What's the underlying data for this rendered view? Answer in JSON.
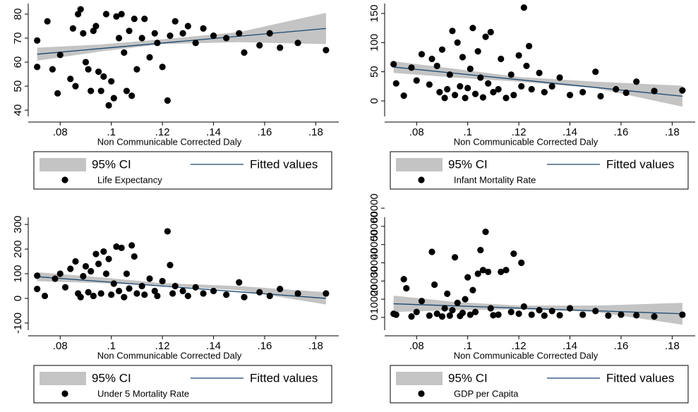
{
  "chart_data": [
    {
      "type": "scatter",
      "xlabel": "Non Communicable Corrected Daly",
      "xlim": [
        0.0675,
        0.189
      ],
      "xticks": [
        {
          "value": 0.08,
          "label": ".08"
        },
        {
          "value": 0.1,
          "label": ".1"
        },
        {
          "value": 0.12,
          "label": ".12"
        },
        {
          "value": 0.14,
          "label": ".14"
        },
        {
          "value": 0.16,
          "label": ".16"
        },
        {
          "value": 0.18,
          "label": ".18"
        }
      ],
      "ylim": [
        37.4,
        84.4
      ],
      "yticks": [
        40,
        50,
        60,
        70,
        80
      ],
      "series": [
        {
          "name": "95% CI",
          "color": "#c4c4c4",
          "x": [
            0.071,
            0.095,
            0.12,
            0.15,
            0.184
          ],
          "lower": [
            60.6,
            64.3,
            67.5,
            68.3,
            67.5
          ],
          "upper": [
            66,
            67.3,
            69.5,
            72.5,
            80.5
          ]
        },
        {
          "name": "Fitted values",
          "color": "#1a476f",
          "x": [
            0.071,
            0.184
          ],
          "values": [
            63.3,
            74
          ]
        },
        {
          "name": "Life Expectancy",
          "color": "#000000",
          "x": [
            0.071,
            0.071,
            0.075,
            0.077,
            0.079,
            0.08,
            0.084,
            0.085,
            0.086,
            0.087,
            0.088,
            0.089,
            0.09,
            0.091,
            0.092,
            0.093,
            0.094,
            0.095,
            0.096,
            0.097,
            0.098,
            0.099,
            0.1,
            0.101,
            0.102,
            0.103,
            0.104,
            0.105,
            0.106,
            0.107,
            0.108,
            0.109,
            0.11,
            0.112,
            0.113,
            0.115,
            0.117,
            0.118,
            0.12,
            0.122,
            0.123,
            0.125,
            0.128,
            0.13,
            0.133,
            0.136,
            0.14,
            0.145,
            0.15,
            0.152,
            0.158,
            0.162,
            0.166,
            0.173,
            0.184
          ],
          "values": [
            69,
            58,
            77,
            57,
            47,
            63,
            53,
            74,
            50,
            80,
            82,
            72,
            60,
            57,
            48,
            73,
            75,
            56,
            48,
            54,
            80,
            42,
            52,
            45,
            79,
            70,
            80,
            64,
            48,
            73,
            46,
            78,
            57,
            70,
            78,
            62,
            72,
            68,
            58,
            44,
            71,
            77,
            72,
            75,
            68,
            74,
            71,
            70,
            72,
            64,
            67,
            72,
            66,
            68,
            65
          ]
        }
      ]
    },
    {
      "type": "scatter",
      "xlabel": "Non Communicable Corrected Daly",
      "xlim": [
        0.0675,
        0.189
      ],
      "xticks": [
        {
          "value": 0.08,
          "label": ".08"
        },
        {
          "value": 0.1,
          "label": ".1"
        },
        {
          "value": 0.12,
          "label": ".12"
        },
        {
          "value": 0.14,
          "label": ".14"
        },
        {
          "value": 0.16,
          "label": ".16"
        },
        {
          "value": 0.18,
          "label": ".18"
        }
      ],
      "ylim": [
        -26.6,
        167
      ],
      "yticks": [
        0,
        50,
        100,
        150
      ],
      "series": [
        {
          "name": "95% CI",
          "color": "#c4c4c4",
          "x": [
            0.071,
            0.095,
            0.12,
            0.15,
            0.184
          ],
          "lower": [
            48,
            40,
            33,
            22,
            -10
          ],
          "upper": [
            68,
            55,
            41,
            33,
            26
          ]
        },
        {
          "name": "Fitted values",
          "color": "#1a476f",
          "x": [
            0.071,
            0.184
          ],
          "values": [
            58,
            8
          ]
        },
        {
          "name": "Infant Mortality Rate",
          "color": "#000000",
          "x": [
            0.071,
            0.072,
            0.075,
            0.078,
            0.08,
            0.082,
            0.085,
            0.086,
            0.088,
            0.089,
            0.09,
            0.091,
            0.092,
            0.093,
            0.094,
            0.095,
            0.096,
            0.097,
            0.098,
            0.099,
            0.1,
            0.101,
            0.102,
            0.103,
            0.104,
            0.105,
            0.106,
            0.107,
            0.108,
            0.109,
            0.11,
            0.112,
            0.113,
            0.115,
            0.117,
            0.118,
            0.12,
            0.121,
            0.122,
            0.123,
            0.124,
            0.125,
            0.128,
            0.13,
            0.133,
            0.136,
            0.14,
            0.145,
            0.15,
            0.152,
            0.158,
            0.162,
            0.166,
            0.173,
            0.184
          ],
          "values": [
            63,
            30,
            9,
            57,
            35,
            80,
            28,
            72,
            60,
            15,
            88,
            5,
            20,
            45,
            120,
            10,
            100,
            25,
            75,
            5,
            22,
            55,
            125,
            12,
            85,
            40,
            6,
            110,
            30,
            118,
            15,
            20,
            72,
            5,
            45,
            10,
            78,
            25,
            160,
            60,
            94,
            20,
            48,
            15,
            25,
            40,
            10,
            15,
            50,
            8,
            20,
            14,
            33,
            17,
            18
          ]
        }
      ]
    },
    {
      "type": "scatter",
      "xlabel": "Non Communicable Corrected Daly",
      "xlim": [
        0.0675,
        0.189
      ],
      "xticks": [
        {
          "value": 0.08,
          "label": ".08"
        },
        {
          "value": 0.1,
          "label": ".1"
        },
        {
          "value": 0.12,
          "label": ".12"
        },
        {
          "value": 0.14,
          "label": ".14"
        },
        {
          "value": 0.16,
          "label": ".16"
        },
        {
          "value": 0.18,
          "label": ".18"
        }
      ],
      "ylim": [
        -129,
        329
      ],
      "yticks": [
        -100,
        0,
        100,
        200,
        300
      ],
      "series": [
        {
          "name": "95% CI",
          "color": "#c4c4c4",
          "x": [
            0.071,
            0.095,
            0.12,
            0.15,
            0.184
          ],
          "lower": [
            70,
            62,
            52,
            33,
            -25
          ],
          "upper": [
            106,
            86,
            62,
            50,
            25
          ]
        },
        {
          "name": "Fitted values",
          "color": "#1a476f",
          "x": [
            0.071,
            0.184
          ],
          "values": [
            88,
            0
          ]
        },
        {
          "name": "Under 5 Mortality Rate",
          "color": "#000000",
          "x": [
            0.071,
            0.071,
            0.074,
            0.078,
            0.08,
            0.082,
            0.084,
            0.086,
            0.087,
            0.088,
            0.089,
            0.09,
            0.091,
            0.092,
            0.093,
            0.094,
            0.095,
            0.096,
            0.097,
            0.098,
            0.099,
            0.1,
            0.101,
            0.102,
            0.103,
            0.104,
            0.105,
            0.106,
            0.107,
            0.108,
            0.109,
            0.11,
            0.112,
            0.113,
            0.115,
            0.117,
            0.118,
            0.12,
            0.122,
            0.123,
            0.124,
            0.125,
            0.128,
            0.13,
            0.133,
            0.136,
            0.14,
            0.145,
            0.15,
            0.152,
            0.158,
            0.162,
            0.166,
            0.173,
            0.184
          ],
          "values": [
            92,
            38,
            10,
            80,
            100,
            45,
            120,
            150,
            20,
            5,
            90,
            130,
            25,
            110,
            10,
            180,
            140,
            20,
            190,
            100,
            160,
            15,
            60,
            210,
            30,
            205,
            5,
            100,
            40,
            215,
            170,
            20,
            50,
            15,
            80,
            30,
            10,
            70,
            272,
            135,
            20,
            50,
            30,
            10,
            45,
            20,
            30,
            15,
            65,
            5,
            25,
            10,
            38,
            20,
            20
          ]
        }
      ]
    },
    {
      "type": "scatter",
      "xlabel": "Non Communicable Corrected Daly",
      "xlim": [
        0.0675,
        0.189
      ],
      "xticks": [
        {
          "value": 0.08,
          "label": ".08"
        },
        {
          "value": 0.1,
          "label": ".1"
        },
        {
          "value": 0.12,
          "label": ".12"
        },
        {
          "value": 0.14,
          "label": ".14"
        },
        {
          "value": 0.16,
          "label": ".16"
        },
        {
          "value": 0.18,
          "label": ".18"
        }
      ],
      "ylim": [
        -7000,
        55000
      ],
      "yticks": [
        0,
        10000,
        20000,
        30000,
        40000,
        50000,
        60000
      ],
      "series": [
        {
          "name": "95% CI",
          "color": "#c4c4c4",
          "x": [
            0.071,
            0.095,
            0.12,
            0.15,
            0.184
          ],
          "lower": [
            3000,
            4000,
            4500,
            3000,
            -4000
          ],
          "upper": [
            12000,
            8500,
            6500,
            6500,
            8000
          ]
        },
        {
          "name": "Fitted values",
          "color": "#1a476f",
          "x": [
            0.071,
            0.184
          ],
          "values": [
            7500,
            2000
          ]
        },
        {
          "name": "GDP per Capita",
          "color": "#000000",
          "x": [
            0.071,
            0.072,
            0.075,
            0.076,
            0.078,
            0.08,
            0.082,
            0.085,
            0.086,
            0.087,
            0.088,
            0.09,
            0.091,
            0.092,
            0.093,
            0.094,
            0.095,
            0.096,
            0.097,
            0.098,
            0.099,
            0.1,
            0.101,
            0.102,
            0.103,
            0.104,
            0.105,
            0.106,
            0.107,
            0.108,
            0.109,
            0.11,
            0.112,
            0.113,
            0.115,
            0.117,
            0.118,
            0.12,
            0.121,
            0.122,
            0.125,
            0.128,
            0.13,
            0.133,
            0.136,
            0.14,
            0.145,
            0.15,
            0.155,
            0.16,
            0.166,
            0.173,
            0.184
          ],
          "values": [
            2000,
            1500,
            21000,
            16000,
            500,
            3000,
            9000,
            1000,
            36000,
            18000,
            2000,
            500,
            5000,
            13000,
            1000,
            4000,
            33000,
            8000,
            800,
            2500,
            10000,
            22000,
            1500,
            15000,
            3000,
            24000,
            37000,
            26000,
            47000,
            25000,
            5000,
            1200,
            1500,
            25000,
            26000,
            3000,
            35000,
            2000,
            30000,
            6000,
            1500,
            4000,
            1000,
            3500,
            1200,
            5000,
            1500,
            3500,
            1000,
            1500,
            1200,
            500,
            1500
          ]
        }
      ]
    }
  ]
}
